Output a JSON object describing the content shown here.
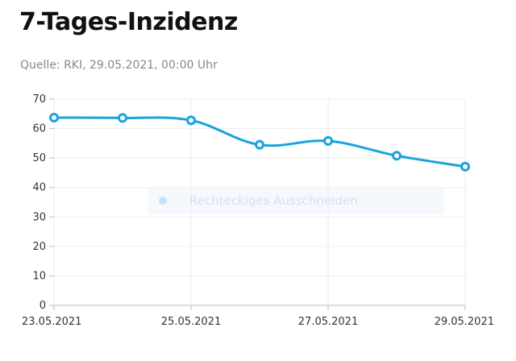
{
  "header": {
    "title": "7-Tages-Inzidenz",
    "source": "Quelle: RKI, 29.05.2021, 00:00 Uhr"
  },
  "overlay": {
    "label": "Rechteckiges Ausschneiden"
  },
  "chart_data": {
    "type": "line",
    "x": [
      "23.05.2021",
      "24.05.2021",
      "25.05.2021",
      "26.05.2021",
      "27.05.2021",
      "28.05.2021",
      "29.05.2021"
    ],
    "x_tick_labels": [
      "23.05.2021",
      "25.05.2021",
      "27.05.2021",
      "29.05.2021"
    ],
    "series": [
      {
        "values": [
          63.7,
          63.6,
          62.8,
          54.5,
          55.8,
          50.8,
          47.1
        ],
        "color": "#1aa3dd"
      }
    ],
    "y_ticks": [
      0,
      10,
      20,
      30,
      40,
      50,
      60,
      70
    ],
    "ylim": [
      0,
      70
    ],
    "grid": true,
    "title": "7-Tages-Inzidenz",
    "xlabel": "",
    "ylabel": ""
  }
}
